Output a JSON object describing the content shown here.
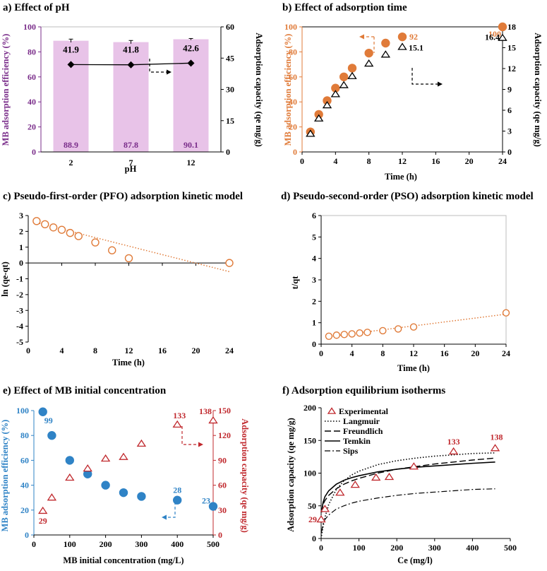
{
  "chart_data": [
    {
      "id": "a",
      "type": "bar",
      "title": "a) Effect of pH",
      "xlabel": "pH",
      "ylabel_left": "MB adsorption efficiency (%)",
      "ylabel_right": "Adsorption capacity (qe mg/g)",
      "categories": [
        "2",
        "7",
        "12"
      ],
      "series": [
        {
          "name": "MB adsorption efficiency",
          "axis": "left",
          "kind": "bar",
          "values": [
            88.9,
            87.8,
            90.1
          ],
          "labels": [
            "88.9",
            "87.8",
            "90.1"
          ],
          "errors": [
            1.3,
            1.3,
            0.6
          ]
        },
        {
          "name": "Adsorption capacity",
          "axis": "right",
          "kind": "line",
          "values": [
            41.9,
            41.8,
            42.6
          ],
          "labels": [
            "41.9",
            "41.8",
            "42.6"
          ]
        }
      ],
      "ylim_left": [
        0,
        100
      ],
      "yticks_left": [
        0,
        20,
        40,
        60,
        80,
        100
      ],
      "ylim_right": [
        0,
        60
      ],
      "yticks_right": [
        0,
        15,
        30,
        45,
        60
      ],
      "colors": {
        "bar": "#e8c3e8",
        "left_axis": "#7a2d8a",
        "line": "#000000"
      }
    },
    {
      "id": "b",
      "type": "scatter",
      "title": "b) Effect of adsorption time",
      "xlabel": "Time (h)",
      "ylabel_left": "MB adsorption efficiency (%)",
      "ylabel_right": "Adsorption capacity (qe mg/g)",
      "xlim": [
        0,
        24
      ],
      "xticks": [
        0,
        4,
        8,
        12,
        16,
        20,
        24
      ],
      "ylim_left": [
        0,
        100
      ],
      "yticks_left": [
        0,
        20,
        40,
        60,
        80,
        100
      ],
      "ylim_right": [
        0,
        18
      ],
      "yticks_right": [
        0,
        3,
        6,
        9,
        12,
        15,
        18
      ],
      "series": [
        {
          "name": "MB adsorption efficiency",
          "axis": "left",
          "marker": "circle",
          "x": [
            1,
            2,
            3,
            4,
            5,
            6,
            8,
            10,
            12,
            24
          ],
          "values": [
            16,
            30,
            41,
            51,
            60,
            67,
            79,
            87,
            92,
            100
          ],
          "labels": {
            "8": "92",
            "9": "100"
          }
        },
        {
          "name": "Adsorption capacity",
          "axis": "right",
          "marker": "triangle",
          "x": [
            1,
            2,
            3,
            4,
            5,
            6,
            8,
            10,
            12,
            24
          ],
          "values": [
            2.6,
            4.8,
            6.7,
            8.3,
            9.6,
            10.9,
            12.7,
            14.0,
            15.1,
            16.4
          ],
          "labels": {
            "8": "15.1",
            "9": "16.4"
          }
        }
      ],
      "colors": {
        "left": "#e07b39",
        "right": "#000000"
      }
    },
    {
      "id": "c",
      "type": "scatter",
      "title": "c) Pseudo-first-order (PFO) adsorption kinetic model",
      "xlabel": "Time (h)",
      "ylabel": "ln (qe-qt)",
      "xlim": [
        0,
        24
      ],
      "xticks": [
        0,
        4,
        8,
        12,
        16,
        20,
        24
      ],
      "ylim": [
        -5,
        3
      ],
      "yticks": [
        -5,
        -4,
        -3,
        -2,
        -1,
        0,
        1,
        2,
        3
      ],
      "x": [
        1,
        2,
        3,
        4,
        5,
        6,
        8,
        10,
        12,
        24
      ],
      "values": [
        2.65,
        2.45,
        2.25,
        2.1,
        1.9,
        1.7,
        1.3,
        0.8,
        0.3,
        0.0
      ],
      "fit_line": {
        "x": [
          1,
          24
        ],
        "y": [
          2.55,
          -0.55
        ]
      },
      "colors": {
        "marker": "#e07b39"
      }
    },
    {
      "id": "d",
      "type": "scatter",
      "title": "d) Pseudo-second-order (PSO) adsorption kinetic model",
      "xlabel": "Time (h)",
      "ylabel": "t/qt",
      "xlim": [
        0,
        24
      ],
      "xticks": [
        0,
        4,
        8,
        12,
        16,
        20,
        24
      ],
      "ylim": [
        0,
        6
      ],
      "yticks": [
        0,
        1,
        2,
        3,
        4,
        5,
        6
      ],
      "x": [
        1,
        2,
        3,
        4,
        5,
        6,
        8,
        10,
        12,
        24
      ],
      "values": [
        0.37,
        0.42,
        0.45,
        0.48,
        0.52,
        0.55,
        0.63,
        0.71,
        0.8,
        1.46
      ],
      "fit_line": {
        "x": [
          1,
          24
        ],
        "y": [
          0.35,
          1.4
        ]
      },
      "colors": {
        "marker": "#e07b39"
      }
    },
    {
      "id": "e",
      "type": "scatter",
      "title": "e) Effect of MB initial concentration",
      "xlabel": "MB initial concentration (mg/L)",
      "ylabel_left": "MB adsorption efficiency (%)",
      "ylabel_right": "Adsorption capacity (qe mg/g)",
      "xlim": [
        0,
        500
      ],
      "xticks": [
        0,
        100,
        200,
        300,
        400,
        500
      ],
      "ylim_left": [
        0,
        100
      ],
      "yticks_left": [
        0,
        20,
        40,
        60,
        80,
        100
      ],
      "ylim_right": [
        0,
        150
      ],
      "yticks_right": [
        0,
        30,
        60,
        90,
        120,
        150
      ],
      "series": [
        {
          "name": "MB adsorption efficiency",
          "axis": "left",
          "marker": "circle",
          "x": [
            25,
            50,
            100,
            150,
            200,
            250,
            300,
            400,
            500
          ],
          "values": [
            99,
            80,
            60,
            49,
            40,
            34,
            31,
            28,
            23
          ],
          "labels": {
            "0": "99",
            "7": "28",
            "8": "23"
          }
        },
        {
          "name": "Adsorption capacity",
          "axis": "right",
          "marker": "triangle",
          "x": [
            25,
            50,
            100,
            150,
            200,
            250,
            300,
            400,
            500
          ],
          "values": [
            29,
            45,
            69,
            80,
            92,
            94,
            110,
            133,
            138
          ],
          "labels": {
            "0": "29",
            "7": "133",
            "8": "138"
          }
        }
      ],
      "colors": {
        "left": "#2f83c6",
        "right": "#c0282d"
      }
    },
    {
      "id": "f",
      "type": "line",
      "title": "f) Adsorption equilibrium isotherms",
      "xlabel": "Ce (mg/l)",
      "ylabel": "Adsorption capacity (qe mg/g)",
      "xlim": [
        0,
        500
      ],
      "xticks": [
        0,
        100,
        200,
        300,
        400,
        500
      ],
      "ylim": [
        0,
        200
      ],
      "yticks": [
        0,
        50,
        100,
        150,
        200
      ],
      "legend": [
        "Experimental",
        "Langmuir",
        "Freundlich",
        "Temkin",
        "Sips"
      ],
      "experimental": {
        "x": [
          0,
          10,
          50,
          90,
          145,
          180,
          245,
          350,
          460
        ],
        "values": [
          29,
          45,
          70,
          82,
          93,
          94,
          110,
          133,
          138
        ],
        "labels": {
          "0": "29",
          "7": "133",
          "8": "138"
        }
      },
      "models": {
        "x": [
          1,
          5,
          10,
          20,
          40,
          60,
          80,
          100,
          150,
          200,
          250,
          300,
          350,
          400,
          460
        ],
        "Langmuir": [
          4,
          18,
          32,
          52,
          75,
          88,
          97,
          103,
          113,
          119,
          123,
          126,
          128,
          130,
          131
        ],
        "Freundlich": [
          40,
          52,
          58,
          66,
          76,
          83,
          88,
          92,
          100,
          106,
          110,
          114,
          117,
          120,
          123
        ],
        "Temkin": [
          40,
          55,
          64,
          73,
          83,
          89,
          93,
          96,
          102,
          106,
          109,
          111,
          113,
          115,
          117
        ],
        "Sips": [
          10,
          22,
          29,
          36,
          45,
          50,
          54,
          57,
          62,
          66,
          69,
          71,
          73,
          75,
          76
        ]
      }
    }
  ]
}
